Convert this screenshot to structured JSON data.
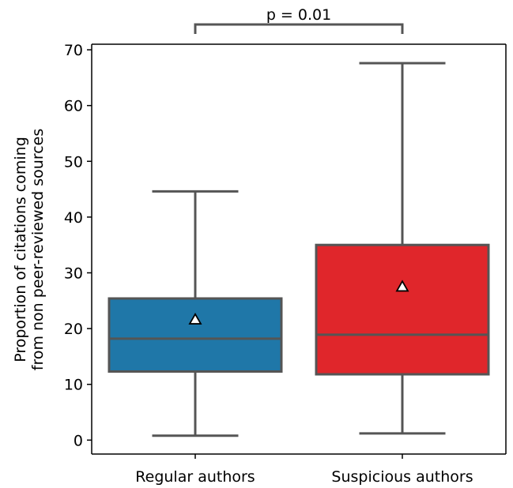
{
  "chart_data": {
    "type": "box",
    "categories": [
      "Regular authors",
      "Suspicious authors"
    ],
    "ylabel_lines": [
      "Proportion of citations coming",
      "from non peer-reviewed sources"
    ],
    "ylim": [
      -2.5,
      71
    ],
    "yticks": [
      0,
      10,
      20,
      30,
      40,
      50,
      60,
      70
    ],
    "grid": false,
    "boxes": [
      {
        "category": "Regular authors",
        "whisker_low": 0.8,
        "q1": 12.3,
        "median": 18.2,
        "q3": 25.4,
        "whisker_high": 44.6,
        "mean": 21.6,
        "color": "#1f77a8"
      },
      {
        "category": "Suspicious authors",
        "whisker_low": 1.2,
        "q1": 11.8,
        "median": 18.9,
        "q3": 35.0,
        "whisker_high": 67.6,
        "mean": 27.5,
        "color": "#e0262b"
      }
    ],
    "annotation": {
      "text": "p = 0.01",
      "between": [
        "Regular authors",
        "Suspicious authors"
      ]
    }
  }
}
